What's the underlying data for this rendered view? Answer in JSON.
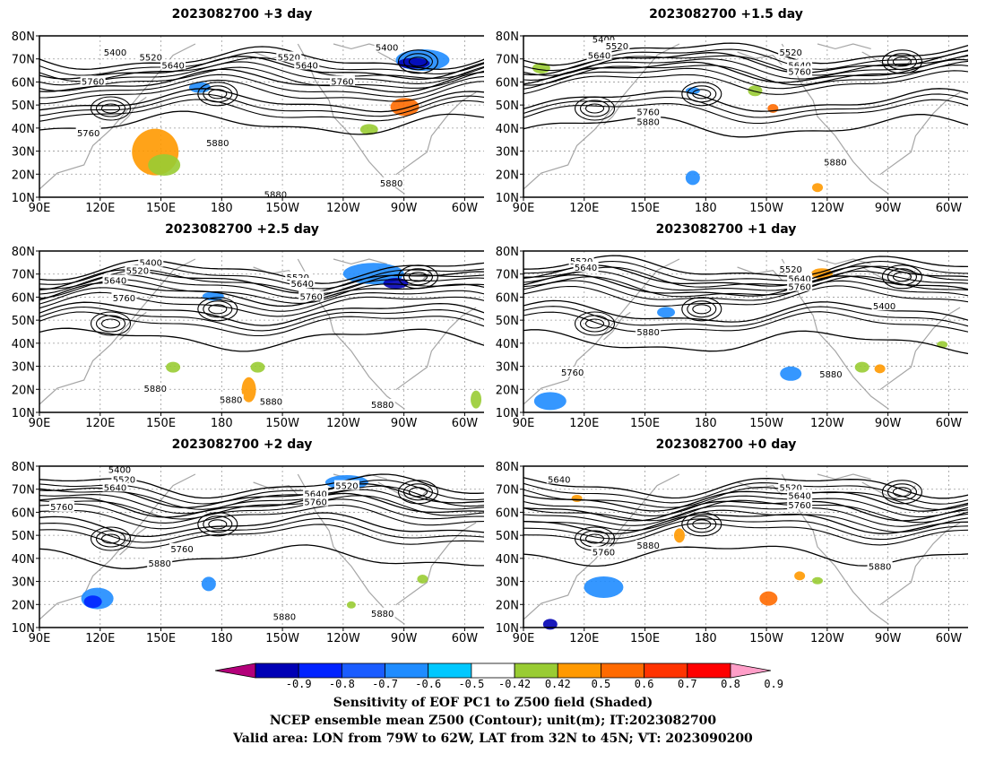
{
  "panels": [
    {
      "title": "2023082700 +3 day"
    },
    {
      "title": "2023082700 +1.5 day"
    },
    {
      "title": "2023082700 +2.5 day"
    },
    {
      "title": "2023082700 +1 day"
    },
    {
      "title": "2023082700 +2 day"
    },
    {
      "title": "2023082700 +0 day"
    }
  ],
  "map": {
    "lat_labels": [
      "80N",
      "70N",
      "60N",
      "50N",
      "40N",
      "30N",
      "20N",
      "10N"
    ],
    "lon_labels": [
      "90E",
      "120E",
      "150E",
      "180",
      "150W",
      "120W",
      "90W",
      "60W"
    ],
    "lat_range": [
      10,
      80
    ],
    "lon_range_deg_east": [
      90,
      310
    ]
  },
  "contour_labels": [
    "5400",
    "5520",
    "5640",
    "5760",
    "5880"
  ],
  "colorbar": {
    "ticks": [
      "-0.9",
      "-0.8",
      "-0.7",
      "-0.6",
      "-0.5",
      "-0.42",
      "0.42",
      "0.5",
      "0.6",
      "0.7",
      "0.8",
      "0.9"
    ],
    "colors": [
      "#b3007a",
      "#0000b5",
      "#0022ff",
      "#1a5cff",
      "#1f8cff",
      "#00c8ff",
      "#ffffff",
      "#99cc33",
      "#ff9900",
      "#ff6a00",
      "#ff3300",
      "#ff0000",
      "#ff9ec8"
    ]
  },
  "caption": {
    "line1": "Sensitivity of EOF PC1 to Z500 field (Shaded)",
    "line2": "NCEP ensemble mean Z500 (Contour); unit(m); IT:2023082700",
    "line3": "Valid area: LON from 79W to 62W, LAT from 32N to 45N; VT: 2023090200"
  },
  "colors": {
    "coast": "#a6a6a6",
    "contour": "#000000",
    "grid": "#9a9a9a"
  },
  "panel_features": [
    {
      "lines": [
        [
          5400,
          10
        ],
        [
          5520,
          16
        ],
        [
          5640,
          24
        ],
        [
          5760,
          36
        ],
        [
          5880,
          50
        ]
      ],
      "labels": [
        [
          "5400",
          0.17,
          0.1
        ],
        [
          "5520",
          0.25,
          0.13
        ],
        [
          "5640",
          0.3,
          0.18
        ],
        [
          "5760",
          0.12,
          0.28
        ],
        [
          "5880",
          0.4,
          0.66
        ],
        [
          "5520",
          0.56,
          0.13
        ],
        [
          "5640",
          0.6,
          0.18
        ],
        [
          "5400",
          0.78,
          0.07
        ],
        [
          "5760",
          0.68,
          0.28
        ],
        [
          "5760",
          0.11,
          0.6
        ],
        [
          "5880",
          0.79,
          0.91
        ],
        [
          "5880",
          0.53,
          0.98
        ]
      ],
      "blobs": [
        [
          "#1f8cff",
          0.86,
          0.15,
          30,
          12
        ],
        [
          "#0000b5",
          0.84,
          0.17,
          18,
          6
        ],
        [
          "#ff9900",
          0.26,
          0.72,
          26,
          26
        ],
        [
          "#99cc33",
          0.28,
          0.8,
          18,
          12
        ],
        [
          "#ff6a00",
          0.82,
          0.44,
          16,
          10
        ],
        [
          "#99cc33",
          0.74,
          0.58,
          10,
          6
        ],
        [
          "#1f8cff",
          0.36,
          0.32,
          12,
          6
        ]
      ]
    },
    {
      "lines": [
        [
          5400,
          6
        ],
        [
          5520,
          12
        ],
        [
          5640,
          18
        ],
        [
          5760,
          36
        ],
        [
          5880,
          52
        ]
      ],
      "labels": [
        [
          "5400",
          0.18,
          0.02
        ],
        [
          "5520",
          0.21,
          0.06
        ],
        [
          "5640",
          0.17,
          0.12
        ],
        [
          "5520",
          0.6,
          0.1
        ],
        [
          "5640",
          0.62,
          0.18
        ],
        [
          "5760",
          0.62,
          0.22
        ],
        [
          "5760",
          0.28,
          0.47
        ],
        [
          "5880",
          0.28,
          0.53
        ],
        [
          "5880",
          0.7,
          0.78
        ]
      ],
      "blobs": [
        [
          "#99cc33",
          0.04,
          0.2,
          10,
          6
        ],
        [
          "#1f8cff",
          0.38,
          0.34,
          8,
          4
        ],
        [
          "#99cc33",
          0.52,
          0.34,
          8,
          6
        ],
        [
          "#ff6a00",
          0.56,
          0.45,
          6,
          5
        ],
        [
          "#1f8cff",
          0.38,
          0.88,
          8,
          8
        ],
        [
          "#ff9900",
          0.66,
          0.94,
          6,
          5
        ]
      ]
    },
    {
      "lines": [
        [
          5400,
          8
        ],
        [
          5520,
          14
        ],
        [
          5640,
          22
        ],
        [
          5760,
          34
        ],
        [
          5880,
          50
        ]
      ],
      "labels": [
        [
          "5400",
          0.25,
          0.07
        ],
        [
          "5520",
          0.22,
          0.12
        ],
        [
          "5640",
          0.17,
          0.18
        ],
        [
          "5760",
          0.19,
          0.29
        ],
        [
          "5520",
          0.58,
          0.16
        ],
        [
          "5640",
          0.59,
          0.2
        ],
        [
          "5760",
          0.61,
          0.28
        ],
        [
          "5880",
          0.26,
          0.85
        ],
        [
          "5880",
          0.43,
          0.92
        ],
        [
          "5880",
          0.52,
          0.93
        ],
        [
          "5880",
          0.77,
          0.95
        ]
      ],
      "blobs": [
        [
          "#1f8cff",
          0.75,
          0.14,
          34,
          12
        ],
        [
          "#0000b5",
          0.8,
          0.2,
          14,
          6
        ],
        [
          "#1f8cff",
          0.39,
          0.28,
          12,
          5
        ],
        [
          "#ff9900",
          0.47,
          0.86,
          8,
          14
        ],
        [
          "#99cc33",
          0.49,
          0.72,
          8,
          6
        ],
        [
          "#99cc33",
          0.3,
          0.72,
          8,
          6
        ],
        [
          "#99cc33",
          0.98,
          0.92,
          6,
          10
        ]
      ]
    },
    {
      "lines": [
        [
          5400,
          6
        ],
        [
          5520,
          12
        ],
        [
          5640,
          18
        ],
        [
          5760,
          34
        ],
        [
          5880,
          52
        ]
      ],
      "labels": [
        [
          "5520",
          0.13,
          0.06
        ],
        [
          "5640",
          0.14,
          0.1
        ],
        [
          "5520",
          0.6,
          0.11
        ],
        [
          "5640",
          0.62,
          0.17
        ],
        [
          "5760",
          0.62,
          0.22
        ],
        [
          "5400",
          0.81,
          0.34
        ],
        [
          "5880",
          0.28,
          0.5
        ],
        [
          "5760",
          0.11,
          0.75
        ],
        [
          "5880",
          0.69,
          0.76
        ]
      ],
      "blobs": [
        [
          "#ff9900",
          0.67,
          0.14,
          12,
          6
        ],
        [
          "#1f8cff",
          0.32,
          0.38,
          10,
          6
        ],
        [
          "#1f8cff",
          0.06,
          0.93,
          18,
          10
        ],
        [
          "#1f8cff",
          0.6,
          0.76,
          12,
          8
        ],
        [
          "#99cc33",
          0.76,
          0.72,
          8,
          6
        ],
        [
          "#ff9900",
          0.8,
          0.73,
          6,
          5
        ],
        [
          "#99cc33",
          0.94,
          0.58,
          6,
          4
        ]
      ]
    },
    {
      "lines": [
        [
          5400,
          8
        ],
        [
          5520,
          14
        ],
        [
          5640,
          20
        ],
        [
          5760,
          32
        ],
        [
          5880,
          52
        ]
      ],
      "labels": [
        [
          "5400",
          0.18,
          0.02
        ],
        [
          "5520",
          0.19,
          0.08
        ],
        [
          "5640",
          0.17,
          0.13
        ],
        [
          "5760",
          0.05,
          0.25
        ],
        [
          "5520",
          0.69,
          0.12
        ],
        [
          "5640",
          0.62,
          0.17
        ],
        [
          "5760",
          0.62,
          0.22
        ],
        [
          "5760",
          0.32,
          0.51
        ],
        [
          "5880",
          0.27,
          0.6
        ],
        [
          "5880",
          0.55,
          0.93
        ],
        [
          "5880",
          0.77,
          0.91
        ]
      ],
      "blobs": [
        [
          "#1f8cff",
          0.69,
          0.1,
          24,
          8
        ],
        [
          "#1f8cff",
          0.13,
          0.82,
          18,
          12
        ],
        [
          "#0022ff",
          0.12,
          0.84,
          10,
          7
        ],
        [
          "#1f8cff",
          0.38,
          0.73,
          8,
          8
        ],
        [
          "#99cc33",
          0.86,
          0.7,
          6,
          5
        ],
        [
          "#99cc33",
          0.7,
          0.86,
          5,
          4
        ]
      ]
    },
    {
      "lines": [
        [
          5640,
          8
        ],
        [
          5520,
          16
        ],
        [
          5640,
          22
        ],
        [
          5760,
          30
        ],
        [
          5880,
          50
        ]
      ],
      "labels": [
        [
          "5640",
          0.08,
          0.08
        ],
        [
          "5520",
          0.6,
          0.13
        ],
        [
          "5640",
          0.62,
          0.18
        ],
        [
          "5760",
          0.62,
          0.24
        ],
        [
          "5760",
          0.18,
          0.53
        ],
        [
          "5880",
          0.28,
          0.49
        ],
        [
          "5880",
          0.8,
          0.62
        ]
      ],
      "blobs": [
        [
          "#ff9900",
          0.12,
          0.2,
          6,
          4
        ],
        [
          "#ff9900",
          0.35,
          0.43,
          6,
          8
        ],
        [
          "#1f8cff",
          0.18,
          0.75,
          22,
          12
        ],
        [
          "#0000b5",
          0.06,
          0.98,
          8,
          6
        ],
        [
          "#ff6a00",
          0.55,
          0.82,
          10,
          8
        ],
        [
          "#99cc33",
          0.66,
          0.71,
          6,
          4
        ],
        [
          "#ff9900",
          0.62,
          0.68,
          6,
          5
        ]
      ]
    }
  ]
}
